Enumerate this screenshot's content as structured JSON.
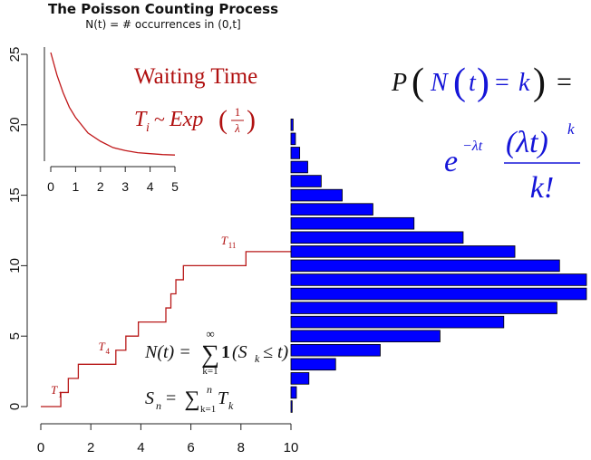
{
  "chart_data": [
    {
      "type": "line",
      "title": "The Poisson Counting Process",
      "subtitle": "N(t) = # occurrences in (0,t]",
      "xlim": [
        0,
        10
      ],
      "ylim": [
        0,
        25
      ],
      "x_ticks": [
        "0",
        "2",
        "4",
        "6",
        "8",
        "10"
      ],
      "y_ticks": [
        "0",
        "5",
        "10",
        "15",
        "20",
        "25"
      ],
      "step": "post",
      "jump_times": [
        0.0,
        0.8,
        1.1,
        1.5,
        3.0,
        3.4,
        3.9,
        5.0,
        5.2,
        5.4,
        5.7,
        8.2
      ],
      "counts": [
        0,
        1,
        2,
        3,
        4,
        5,
        6,
        7,
        8,
        9,
        10,
        11
      ],
      "x_end": 10,
      "labels": [
        {
          "text": "T",
          "sub": "1",
          "x": 0.4,
          "y": 0.9
        },
        {
          "text": "T",
          "sub": "4",
          "x": 2.3,
          "y": 4.0
        },
        {
          "text": "T",
          "sub": "11",
          "x": 7.2,
          "y": 11.5
        }
      ]
    },
    {
      "type": "line",
      "title": "Waiting Time",
      "xlim": [
        0,
        5
      ],
      "x_ticks": [
        "0",
        "1",
        "2",
        "3",
        "4",
        "5"
      ],
      "curve": "exponential density, rate 1",
      "x": [
        0,
        0.25,
        0.5,
        0.75,
        1,
        1.5,
        2,
        2.5,
        3,
        3.5,
        4,
        4.5,
        5
      ],
      "y": [
        1.0,
        0.78,
        0.61,
        0.47,
        0.37,
        0.22,
        0.14,
        0.08,
        0.05,
        0.03,
        0.02,
        0.011,
        0.007
      ]
    },
    {
      "type": "bar",
      "orientation": "horizontal",
      "title": "P(N(t) = k)",
      "categories": [
        "0",
        "1",
        "2",
        "3",
        "4",
        "5",
        "6",
        "7",
        "8",
        "9",
        "10",
        "11",
        "12",
        "13",
        "14",
        "15",
        "16",
        "17",
        "18",
        "19",
        "20"
      ],
      "values": [
        0.0005,
        0.0023,
        0.0076,
        0.0189,
        0.0378,
        0.0631,
        0.0901,
        0.1126,
        0.1251,
        0.1251,
        0.1137,
        0.0948,
        0.0729,
        0.0521,
        0.0347,
        0.0217,
        0.0128,
        0.0071,
        0.0037,
        0.0019,
        0.0009
      ],
      "color": "#0000ff"
    }
  ],
  "annotations": {
    "waiting_time_label": "Waiting Time",
    "waiting_T": "T",
    "waiting_T_sub": "i",
    "waiting_sim": "~",
    "waiting_exp": "Exp",
    "waiting_frac_num": "1",
    "waiting_frac_den": "λ",
    "n_lhs": "N(t) =",
    "n_sum": "∑",
    "n_sum_top": "∞",
    "n_sum_bottom": "k=1",
    "n_indicator": "1",
    "n_rhs": "(S",
    "n_rhs_sub": "k",
    "n_rhs_end": "≤ t)",
    "s_lhs": "S",
    "s_lhs_sub": "n",
    "s_eq": "=",
    "s_sum": "∑",
    "s_sum_top": "n",
    "s_sum_bottom": "k=1",
    "s_T": "T",
    "s_T_sub": "k",
    "p_P": "P",
    "p_N": "N",
    "p_t": "t",
    "p_eq1": "=",
    "p_k": "k",
    "p_eq2": "=",
    "p_e": "e",
    "p_exp": "−λt",
    "p_num": "(λt)",
    "p_num_pow": "k",
    "p_den": "k!"
  }
}
